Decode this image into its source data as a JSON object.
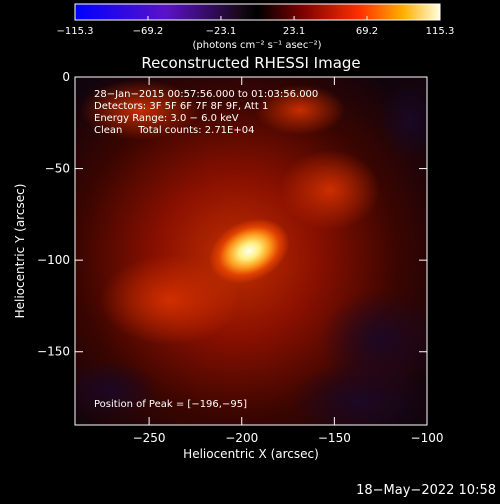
{
  "colorbar": {
    "tick_labels": [
      "−115.3",
      "−69.2",
      "−23.1",
      "23.1",
      "69.2",
      "115.3"
    ],
    "tick_values": [
      -115.3,
      -69.2,
      -23.1,
      23.1,
      69.2,
      115.3
    ],
    "range": [
      -115.3,
      115.3
    ],
    "unit_label": "(photons cm⁻² s⁻¹ asec⁻²)"
  },
  "chart_data": {
    "type": "heatmap",
    "title": "Reconstructed RHESSI Image",
    "xlabel": "Heliocentric X (arcsec)",
    "ylabel": "Heliocentric Y (arcsec)",
    "xlim": [
      -290,
      -100
    ],
    "ylim": [
      -190,
      0
    ],
    "x_ticks": [
      -250,
      -200,
      -150,
      -100
    ],
    "x_tick_labels": [
      "−250",
      "−200",
      "−150",
      "−100"
    ],
    "y_ticks": [
      0,
      -50,
      -100,
      -150
    ],
    "y_tick_labels": [
      "0",
      "−50",
      "−100",
      "−150"
    ],
    "peak": [
      -196,
      -95
    ],
    "annotations": [
      "28−Jan−2015 00:57:56.000 to 01:03:56.000",
      "Detectors: 3F 5F 6F 7F 8F 9F, Att 1",
      "Energy Range: 3.0 − 6.0 keV",
      "Clean     Total counts: 2.71E+04"
    ],
    "peak_label": "Position of Peak = [−196,−95]"
  },
  "footer": {
    "date": "18−May−2022 10:58"
  }
}
